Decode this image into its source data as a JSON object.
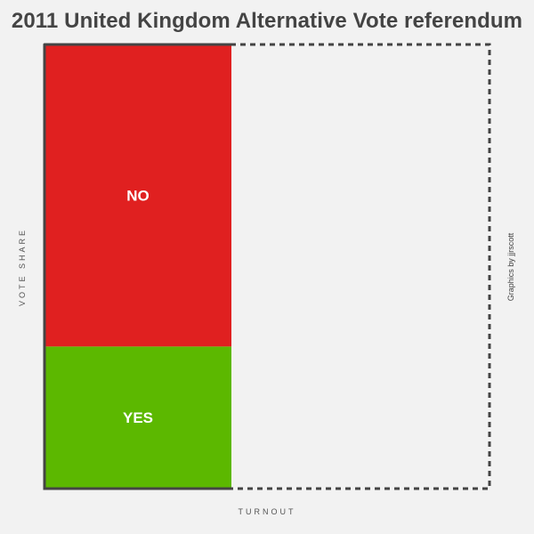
{
  "chart_data": {
    "type": "bar",
    "title": "2011 United Kingdom Alternative Vote referendum",
    "xlabel": "TURNOUT",
    "ylabel": "VOTE SHARE",
    "turnout": 0.42,
    "segments": [
      {
        "name": "YES",
        "share": 0.32,
        "color": "#5cb800"
      },
      {
        "name": "NO",
        "share": 0.68,
        "color": "#e02020"
      }
    ],
    "grid": false,
    "legend": "none"
  },
  "credit": "Graphics by jjrscott",
  "colors": {
    "background": "#f2f2f2",
    "frame": "#444444",
    "title": "#444444",
    "label_text": "#ffffff"
  }
}
